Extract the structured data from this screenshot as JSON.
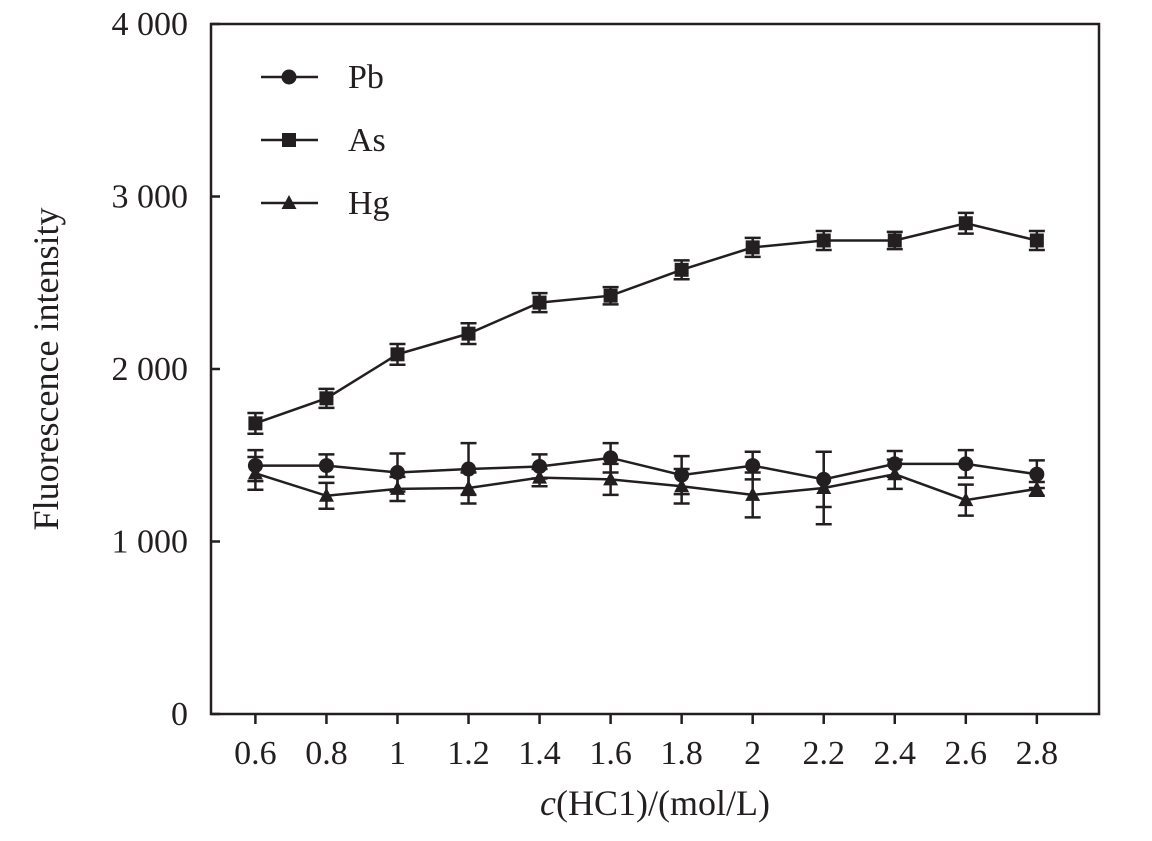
{
  "chart_data": {
    "type": "line",
    "title": "",
    "xlabel_italic": "c",
    "xlabel_rest": "(HC1)/(mol/L)",
    "ylabel": "Fluorescence intensity",
    "x": [
      0.6,
      0.8,
      1.0,
      1.2,
      1.4,
      1.6,
      1.8,
      2.0,
      2.2,
      2.4,
      2.6,
      2.8
    ],
    "x_tick_labels": [
      "0.6",
      "0.8",
      "1",
      "1.2",
      "1.4",
      "1.6",
      "1.8",
      "2",
      "2.2",
      "2.4",
      "2.6",
      "2.8"
    ],
    "y_ticks": [
      0,
      1000,
      2000,
      3000,
      4000
    ],
    "y_tick_labels": [
      "0",
      "1 000",
      "2 000",
      "3 000",
      "4 000"
    ],
    "xlim": [
      0.475,
      2.975
    ],
    "ylim": [
      0,
      4000
    ],
    "grid": false,
    "legend_position": "top-left",
    "series": [
      {
        "name": "Pb",
        "marker": "circle",
        "values": [
          1440,
          1440,
          1400,
          1420,
          1435,
          1485,
          1385,
          1440,
          1360,
          1450,
          1450,
          1390
        ],
        "errors": [
          90,
          65,
          110,
          150,
          70,
          85,
          110,
          80,
          160,
          75,
          80,
          80
        ]
      },
      {
        "name": "As",
        "marker": "square",
        "values": [
          1685,
          1830,
          2085,
          2205,
          2385,
          2425,
          2575,
          2705,
          2745,
          2745,
          2845,
          2745
        ],
        "errors": [
          60,
          55,
          60,
          60,
          55,
          50,
          55,
          55,
          55,
          50,
          60,
          55
        ]
      },
      {
        "name": "Hg",
        "marker": "triangle",
        "values": [
          1395,
          1265,
          1305,
          1310,
          1370,
          1360,
          1320,
          1270,
          1310,
          1390,
          1240,
          1305
        ],
        "errors": [
          95,
          75,
          70,
          90,
          50,
          90,
          100,
          130,
          210,
          85,
          90,
          40
        ]
      }
    ]
  },
  "colors": {
    "ink": "#231f20",
    "background": "#ffffff"
  }
}
